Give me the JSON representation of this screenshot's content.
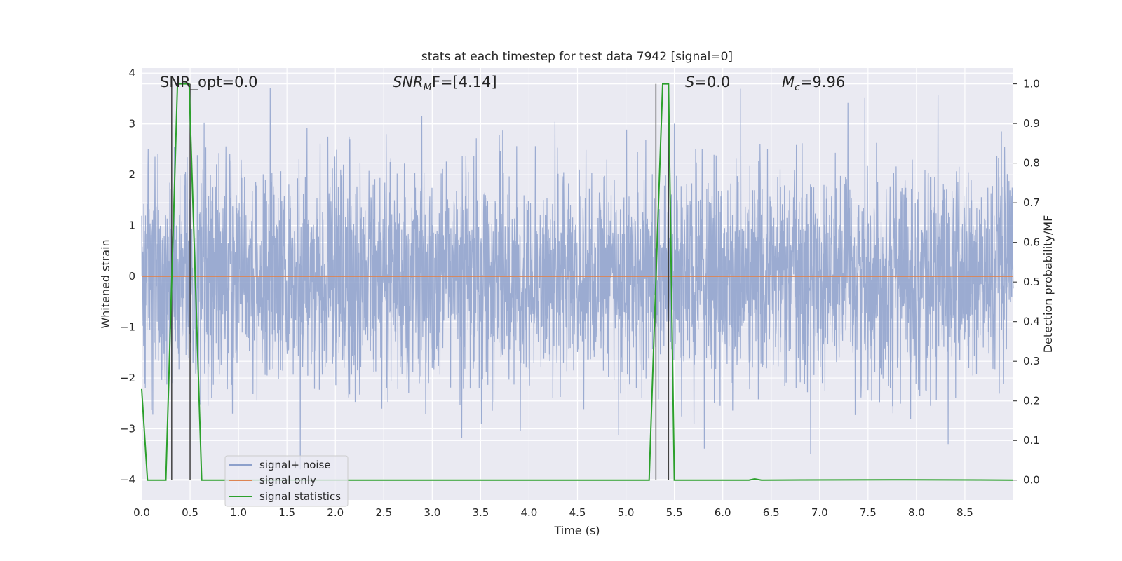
{
  "chart_data": {
    "type": "line",
    "title": "stats at each timestep for test data 7942 [signal=0]",
    "xlabel": "Time (s)",
    "ylabel": "Whitened strain",
    "ylabel_right": "Detection probability/MF",
    "xlim": [
      0,
      9.0
    ],
    "ylim": [
      -4.4,
      4.1
    ],
    "ylim_right": [
      -0.05,
      1.04
    ],
    "x_ticks": [
      "0.0",
      "0.5",
      "1.0",
      "1.5",
      "2.0",
      "2.5",
      "3.0",
      "3.5",
      "4.0",
      "4.5",
      "5.0",
      "5.5",
      "6.0",
      "6.5",
      "7.0",
      "7.5",
      "8.0",
      "8.5"
    ],
    "y_ticks": [
      "4",
      "3",
      "2",
      "1",
      "0",
      "−1",
      "−2",
      "−3",
      "−4"
    ],
    "y_ticks_right": [
      "1.0",
      "0.9",
      "0.8",
      "0.7",
      "0.6",
      "0.5",
      "0.4",
      "0.3",
      "0.2",
      "0.1",
      "0.0"
    ],
    "grid": true,
    "legend_position": "lower-left",
    "annotations": {
      "snr_opt": "SNR_opt=0.0",
      "snr_mf_main": "SNR",
      "snr_mf_sub": "M",
      "snr_mf_tail": "F=[4.14]",
      "s_main": "S",
      "s_tail": "=0.0",
      "mc_main": "M",
      "mc_sub": "c",
      "mc_tail": "=9.96"
    },
    "series": [
      {
        "name": "signal+ noise",
        "color": "#8da0cb",
        "axis": "left",
        "description_values": "whitened noise, approx. Gaussian amplitude ~1, peaks up to about ±3.7",
        "sample_rate_hz": 400,
        "peak_max": 3.7,
        "peak_min": -3.8
      },
      {
        "name": "signal only",
        "color": "#dd8452",
        "axis": "left",
        "x": [
          0.0,
          9.0
        ],
        "y": [
          0.0,
          0.0
        ]
      },
      {
        "name": "signal statistics",
        "color": "#2ca02c",
        "axis": "right",
        "x": [
          0.0,
          0.06,
          0.25,
          0.37,
          0.49,
          0.62,
          5.24,
          5.33,
          5.38,
          5.44,
          5.5,
          6.27,
          6.33,
          6.4,
          7.9,
          9.0
        ],
        "y": [
          0.23,
          0.0,
          0.0,
          1.0,
          1.0,
          0.0,
          0.0,
          0.65,
          1.0,
          1.0,
          0.0,
          0.0,
          0.003,
          0.0,
          0.001,
          0.0
        ]
      }
    ],
    "vertical_markers": [
      {
        "x": 0.31,
        "ymin": 0.0,
        "ymax": 1.0
      },
      {
        "x": 0.5,
        "ymin": 0.0,
        "ymax": 1.0
      },
      {
        "x": 5.31,
        "ymin": 0.0,
        "ymax": 1.0
      },
      {
        "x": 5.44,
        "ymin": 0.0,
        "ymax": 1.0
      }
    ],
    "colors": {
      "background": "#eaeaf2",
      "grid": "#ffffff",
      "marker": "#404040"
    }
  }
}
